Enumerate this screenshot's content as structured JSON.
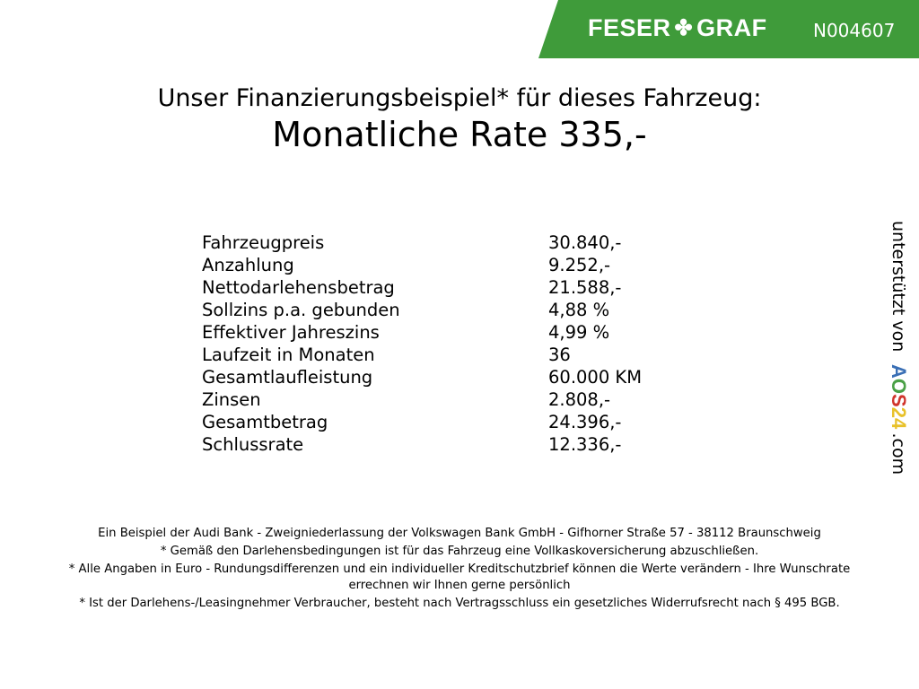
{
  "header": {
    "logo_left": "FESER",
    "logo_right": "GRAF",
    "logo_icon": "clover-icon",
    "code": "N004607",
    "brand_color": "#3f9b3a"
  },
  "title": "Unser Finanzierungsbeispiel* für dieses Fahrzeug:",
  "rate": "Monatliche Rate 335,-",
  "rows": [
    {
      "label": "Fahrzeugpreis",
      "value": "30.840,-"
    },
    {
      "label": "Anzahlung",
      "value": "9.252,-"
    },
    {
      "label": "Nettodarlehensbetrag",
      "value": "21.588,-"
    },
    {
      "label": "Sollzins p.a. gebunden",
      "value": "4,88 %"
    },
    {
      "label": "Effektiver Jahreszins",
      "value": "4,99 %"
    },
    {
      "label": "Laufzeit in Monaten",
      "value": "36"
    },
    {
      "label": "Gesamtlaufleistung",
      "value": "60.000 KM"
    },
    {
      "label": "Zinsen",
      "value": "2.808,-"
    },
    {
      "label": "Gesamtbetrag",
      "value": "24.396,-"
    },
    {
      "label": "Schlussrate",
      "value": "12.336,-"
    }
  ],
  "side": {
    "text": "unterstützt von",
    "brand": [
      "A",
      "O",
      "S",
      "2",
      "4"
    ],
    "brand_colors": [
      "#3a6fb5",
      "#4aa046",
      "#d0342c",
      "#e8c12a",
      "#e8c12a"
    ],
    "suffix": ".com"
  },
  "footer": [
    "Ein Beispiel der Audi Bank - Zweigniederlassung der Volkswagen Bank GmbH - Gifhorner Straße 57 - 38112 Braunschweig",
    "* Gemäß den Darlehensbedingungen ist für das Fahrzeug eine Vollkaskoversicherung abzuschließen.",
    "* Alle Angaben in Euro - Rundungsdifferenzen und ein individueller Kreditschutzbrief können die Werte verändern - Ihre Wunschrate errechnen wir Ihnen gerne persönlich",
    "* Ist der Darlehens-/Leasingnehmer Verbraucher, besteht nach Vertragsschluss ein gesetzliches Widerrufsrecht nach § 495 BGB."
  ]
}
